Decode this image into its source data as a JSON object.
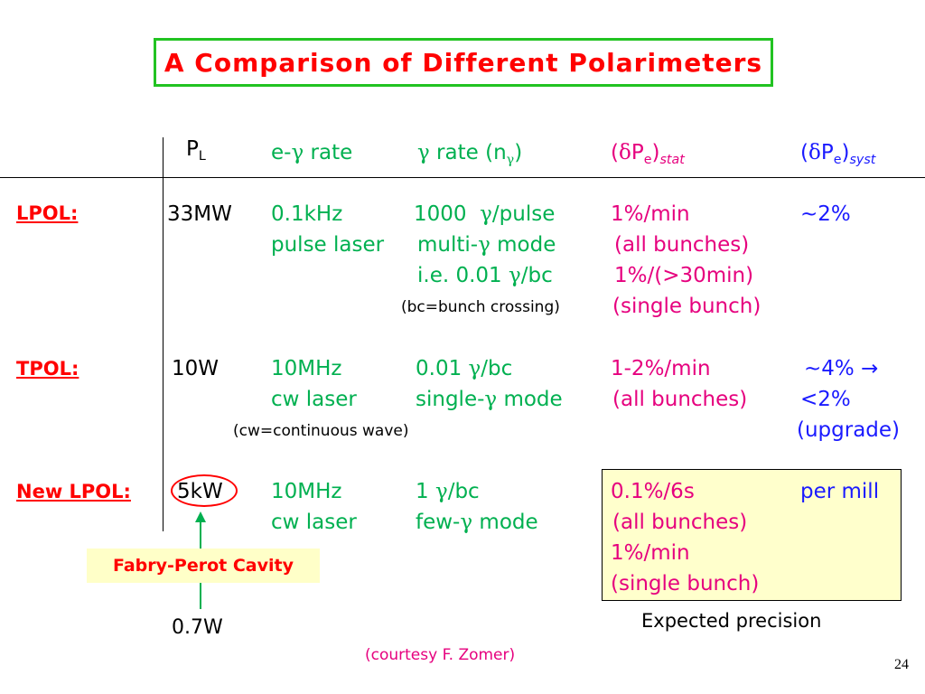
{
  "title": "A Comparison of Different Polarimeters",
  "headers": {
    "pl": "P",
    "pl_sub": "L",
    "egamma_pre": "e-",
    "gamma": "γ",
    "egamma_post": " rate",
    "grate_gamma": "γ",
    "grate_mid": " rate (n",
    "grate_sub": "γ",
    "grate_end": ")",
    "stat_open": "(",
    "delta": "δ",
    "stat_p": "P",
    "stat_e": "e",
    "stat_close": ")",
    "stat_sub": "stat",
    "syst_open": "(",
    "syst_delta": "δ",
    "syst_p": "P",
    "syst_e": "e",
    "syst_close": ")",
    "syst_sub": "syst"
  },
  "rows": {
    "lpol": {
      "label": "LPOL:",
      "pl": "33MW",
      "erate1": "0.1kHz",
      "erate2": "pulse laser",
      "grate1_a": "1000  ",
      "grate1_g": "γ",
      "grate1_b": "/pulse",
      "grate2_a": "multi-",
      "grate2_g": "γ",
      "grate2_b": " mode",
      "grate3_a": "i.e. 0.01 ",
      "grate3_g": "γ",
      "grate3_b": "/bc",
      "note": "(bc=bunch crossing)",
      "stat1": "1%/min",
      "stat2": "(all bunches)",
      "stat3": "1%/(>30min)",
      "stat4": "(single bunch)",
      "syst": "~2%"
    },
    "tpol": {
      "label": "TPOL:",
      "pl": "10W",
      "erate1": "10MHz",
      "erate2": "cw laser",
      "grate1_a": "0.01 ",
      "grate1_g": "γ",
      "grate1_b": "/bc",
      "grate2_a": "single-",
      "grate2_g": "γ",
      "grate2_b": " mode",
      "note": "(cw=continuous wave)",
      "stat1": "1-2%/min",
      "stat2": "(all bunches)",
      "syst1": "~4% →",
      "syst2": "<2%",
      "syst3": "(upgrade)"
    },
    "newlpol": {
      "label": "New LPOL:",
      "pl": "5kW",
      "erate1": "10MHz",
      "erate2": "cw laser",
      "grate1_a": "1 ",
      "grate1_g": "γ",
      "grate1_b": "/bc",
      "grate2_a": "few-",
      "grate2_g": "γ",
      "grate2_b": " mode",
      "stat1": "0.1%/6s",
      "stat2": "(all bunches)",
      "stat3": "1%/min",
      "stat4": "(single bunch)",
      "syst": "per mill"
    }
  },
  "fabry_perot": "Fabry-Perot Cavity",
  "input_power": "0.7W",
  "expected_precision": "Expected precision",
  "courtesy": "(courtesy F. Zomer)",
  "page_number": "24",
  "colors": {
    "title": "#ff0000",
    "title_border": "#22c322",
    "green": "#00b050",
    "magenta": "#e6007e",
    "blue": "#1a1aff",
    "highlight": "#ffffcc"
  }
}
